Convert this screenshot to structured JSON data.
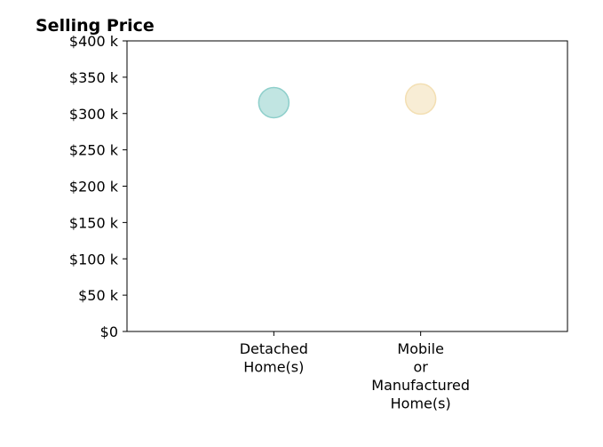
{
  "chart_data": {
    "type": "scatter",
    "title": "Selling Price",
    "xlabel": "",
    "ylabel": "",
    "categories": [
      [
        "Detached",
        "Home(s)"
      ],
      [
        "Mobile",
        "or",
        "Manufactured",
        "Home(s)"
      ]
    ],
    "yticks": [
      {
        "value": 0,
        "label": "$0"
      },
      {
        "value": 50000,
        "label": "$50 k"
      },
      {
        "value": 100000,
        "label": "$100 k"
      },
      {
        "value": 150000,
        "label": "$150 k"
      },
      {
        "value": 200000,
        "label": "$200 k"
      },
      {
        "value": 250000,
        "label": "$250 k"
      },
      {
        "value": 300000,
        "label": "$300 k"
      },
      {
        "value": 350000,
        "label": "$350 k"
      },
      {
        "value": 400000,
        "label": "$400 k"
      }
    ],
    "ylim": [
      0,
      400000
    ],
    "xlim": [
      -1,
      2
    ],
    "points": [
      {
        "x": 0,
        "value": 315000,
        "color": "#8ecfcb"
      },
      {
        "x": 1,
        "value": 320000,
        "color": "#f3dfb3"
      }
    ],
    "grid": false,
    "legend": "none"
  }
}
